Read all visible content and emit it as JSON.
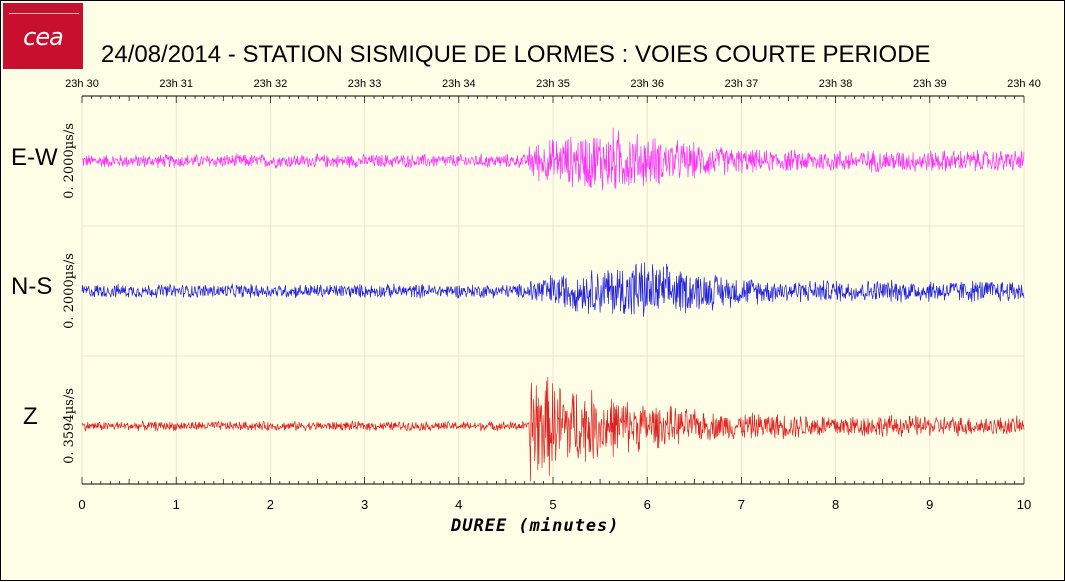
{
  "title": "24/08/2014  -  STATION SISMIQUE DE LORMES : VOIES COURTE PERIODE",
  "logo": {
    "text": "cea"
  },
  "chart_data": {
    "type": "line",
    "title": "24/08/2014  -  STATION SISMIQUE DE LORMES : VOIES COURTE PERIODE",
    "xlabel": "DUREE  (minutes)",
    "xlim": [
      0,
      10
    ],
    "x_ticks": [
      "0",
      "1",
      "2",
      "3",
      "4",
      "5",
      "6",
      "7",
      "8",
      "9",
      "10"
    ],
    "top_ticks": [
      "23h 30",
      "23h 31",
      "23h 32",
      "23h 33",
      "23h 34",
      "23h 35",
      "23h 36",
      "23h 37",
      "23h 38",
      "23h 39",
      "23h 40"
    ],
    "grid": true,
    "series": [
      {
        "name": "E-W",
        "scale": "0. 2000µs/s",
        "color": "#ff30ff",
        "onset_min": 4.75,
        "noise_amp": 0.12,
        "signal_amp": 0.6,
        "peak_min": 5.6
      },
      {
        "name": "N-S",
        "scale": "0. 2000µs/s",
        "color": "#2020e0",
        "onset_min": 4.75,
        "noise_amp": 0.12,
        "signal_amp": 0.55,
        "peak_min": 5.9
      },
      {
        "name": "Z",
        "scale": "0. 3594µs/s",
        "color": "#e02020",
        "onset_min": 4.75,
        "noise_amp": 0.08,
        "signal_amp": 0.95,
        "peak_min": 4.8
      }
    ]
  }
}
